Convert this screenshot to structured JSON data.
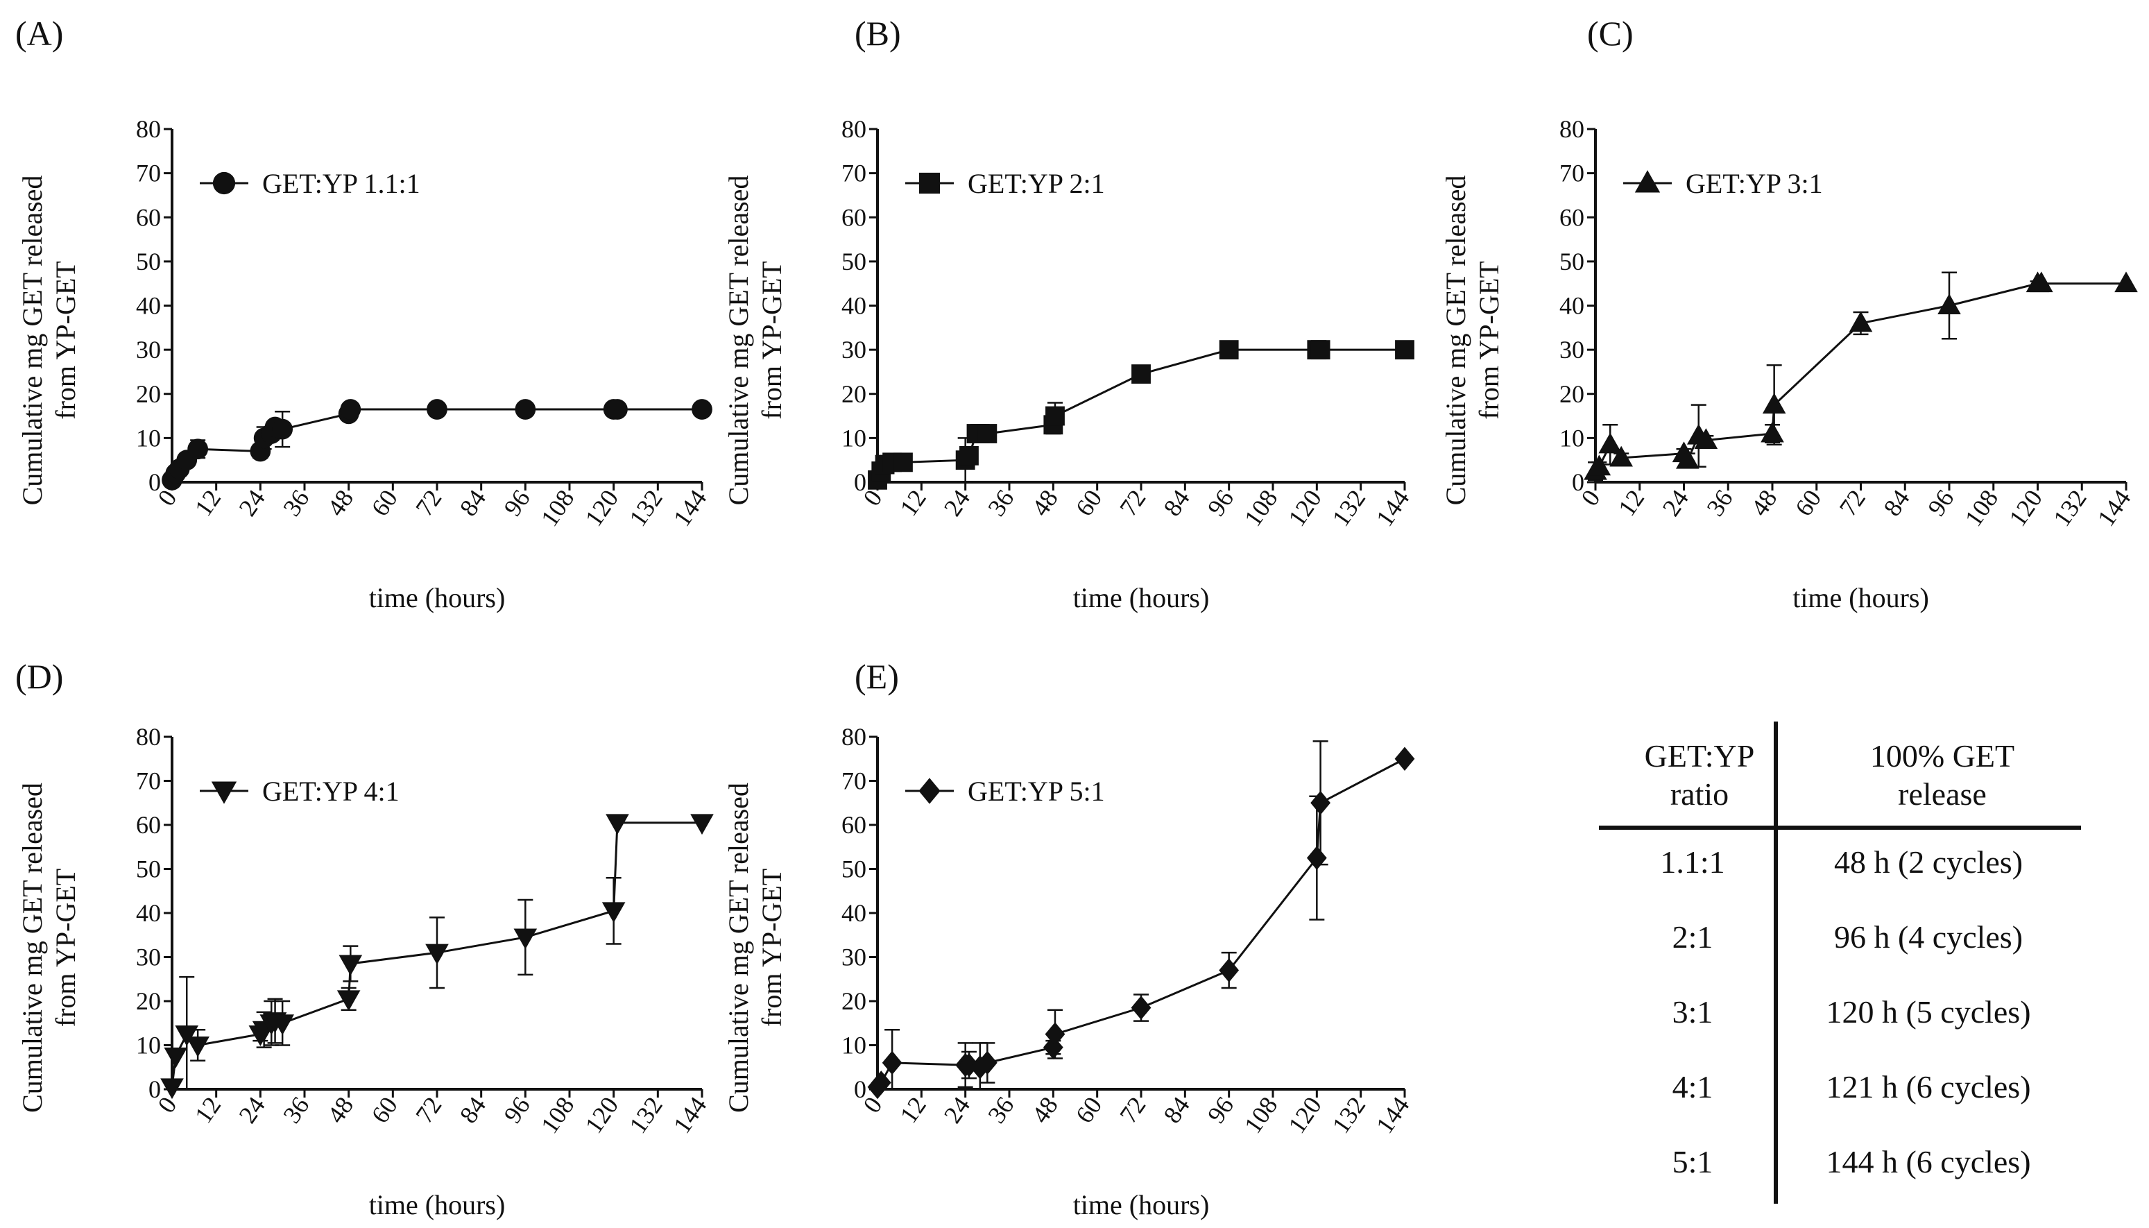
{
  "chart_data": [
    {
      "type": "line",
      "panel": "(A)",
      "legend": "GET:YP 1.1:1",
      "marker": "circle",
      "xlabel": "time (hours)",
      "ylabel_line1": "Cumulative mg  GET released",
      "ylabel_line2": "from YP-GET",
      "xlim": [
        0,
        144
      ],
      "ylim": [
        0,
        80
      ],
      "xticks": [
        0,
        12,
        24,
        36,
        48,
        60,
        72,
        84,
        96,
        108,
        120,
        132,
        144
      ],
      "yticks": [
        0,
        10,
        20,
        30,
        40,
        50,
        60,
        70,
        80
      ],
      "legend_position": "top-left",
      "series": [
        {
          "name": "GET:YP 1.1:1",
          "x": [
            0,
            1,
            2,
            4,
            7,
            24,
            25,
            27,
            28,
            30,
            48,
            48.5,
            72,
            96,
            120,
            121,
            144
          ],
          "y": [
            0.5,
            2,
            3,
            5,
            7.5,
            7,
            10,
            11,
            12.5,
            12,
            15.5,
            16.5,
            16.5,
            16.5,
            16.5,
            16.5,
            16.5
          ],
          "err": [
            0,
            0,
            0,
            0.5,
            2,
            1.5,
            2.5,
            1.5,
            1,
            4,
            1,
            0.5,
            0,
            0,
            0,
            0,
            0
          ]
        }
      ]
    },
    {
      "type": "line",
      "panel": "(B)",
      "legend": "GET:YP 2:1",
      "marker": "square",
      "xlabel": "time (hours)",
      "ylabel_line1": "Cumulative mg  GET released",
      "ylabel_line2": "from YP-GET",
      "xlim": [
        0,
        144
      ],
      "ylim": [
        0,
        80
      ],
      "xticks": [
        0,
        12,
        24,
        36,
        48,
        60,
        72,
        84,
        96,
        108,
        120,
        132,
        144
      ],
      "yticks": [
        0,
        10,
        20,
        30,
        40,
        50,
        60,
        70,
        80
      ],
      "legend_position": "top-left",
      "series": [
        {
          "name": "GET:YP 2:1",
          "x": [
            0,
            1,
            2,
            4,
            7,
            24,
            25,
            27,
            28,
            30,
            48,
            48.5,
            72,
            96,
            120,
            121,
            144
          ],
          "y": [
            0.5,
            2.5,
            4,
            4.5,
            4.5,
            5,
            6,
            11,
            11,
            11,
            13,
            15,
            24.5,
            30,
            30,
            30,
            30
          ],
          "err": [
            0,
            0,
            0.5,
            1.5,
            0.5,
            5,
            1.5,
            1,
            0,
            0,
            2,
            3,
            0.5,
            0,
            0,
            0,
            0
          ]
        }
      ]
    },
    {
      "type": "line",
      "panel": "(C)",
      "legend": "GET:YP 3:1",
      "marker": "triangle",
      "xlabel": "time (hours)",
      "ylabel_line1": "Cumulative mg  GET released",
      "ylabel_line2": "from YP-GET",
      "xlim": [
        0,
        144
      ],
      "ylim": [
        0,
        80
      ],
      "xticks": [
        0,
        12,
        24,
        36,
        48,
        60,
        72,
        84,
        96,
        108,
        120,
        132,
        144
      ],
      "yticks": [
        0,
        10,
        20,
        30,
        40,
        50,
        60,
        70,
        80
      ],
      "legend_position": "top-left",
      "series": [
        {
          "name": "GET:YP 3:1",
          "x": [
            0,
            1,
            4,
            7,
            24,
            25,
            28,
            30,
            48,
            48.5,
            72,
            96,
            120,
            121,
            144
          ],
          "y": [
            2.5,
            3.5,
            8.5,
            5.5,
            6.5,
            5,
            10.5,
            9.5,
            11,
            17.5,
            36,
            40,
            45,
            45,
            45
          ],
          "err": [
            2,
            1,
            4.5,
            1,
            1,
            1.5,
            7,
            1,
            2,
            9,
            2.5,
            7.5,
            0.5,
            0,
            0
          ]
        }
      ]
    },
    {
      "type": "line",
      "panel": "(D)",
      "legend": "GET:YP 4:1",
      "marker": "triangle-down",
      "xlabel": "time (hours)",
      "ylabel_line1": "Cumulative mg  GET released",
      "ylabel_line2": "from YP-GET",
      "xlim": [
        0,
        144
      ],
      "ylim": [
        0,
        80
      ],
      "xticks": [
        0,
        12,
        24,
        36,
        48,
        60,
        72,
        84,
        96,
        108,
        120,
        132,
        144
      ],
      "yticks": [
        0,
        10,
        20,
        30,
        40,
        50,
        60,
        70,
        80
      ],
      "legend_position": "top-left",
      "series": [
        {
          "name": "GET:YP 4:1",
          "x": [
            0,
            1,
            4,
            7,
            24,
            25,
            27,
            28,
            30,
            48,
            48.5,
            72,
            96,
            120,
            121,
            144
          ],
          "y": [
            0.5,
            7.5,
            12.5,
            10,
            12.5,
            13.5,
            15,
            15.5,
            15,
            20.5,
            28.5,
            31,
            34.5,
            40.5,
            60.5,
            60.5
          ],
          "err": [
            0,
            0,
            13,
            3.5,
            1.5,
            4,
            5,
            5,
            5,
            2.5,
            4,
            8,
            8.5,
            7.5,
            0,
            0
          ]
        }
      ]
    },
    {
      "type": "line",
      "panel": "(E)",
      "legend": "GET:YP 5:1",
      "marker": "diamond",
      "xlabel": "time (hours)",
      "ylabel_line1": "Cumulative mg  GET released",
      "ylabel_line2": "from YP-GET",
      "xlim": [
        0,
        144
      ],
      "ylim": [
        0,
        80
      ],
      "xticks": [
        0,
        12,
        24,
        36,
        48,
        60,
        72,
        84,
        96,
        108,
        120,
        132,
        144
      ],
      "yticks": [
        0,
        10,
        20,
        30,
        40,
        50,
        60,
        70,
        80
      ],
      "legend_position": "top-left",
      "series": [
        {
          "name": "GET:YP 5:1",
          "x": [
            0,
            1,
            4,
            24,
            25,
            28,
            30,
            48,
            48.5,
            72,
            96,
            120,
            121,
            144
          ],
          "y": [
            0.5,
            1.5,
            6,
            5.5,
            5.5,
            5,
            6,
            9.5,
            12.5,
            18.5,
            27,
            52.5,
            65,
            75
          ],
          "err": [
            0,
            0,
            7.5,
            5,
            3,
            5.5,
            4.5,
            1.5,
            5.5,
            3,
            4,
            14,
            14,
            0
          ]
        }
      ]
    }
  ],
  "table": {
    "header_col1_line1": "GET:YP",
    "header_col1_line2": "ratio",
    "header_col2_line1": "100% GET",
    "header_col2_line2": "release",
    "rows": [
      {
        "ratio": "1.1:1",
        "release": "48 h (2 cycles)"
      },
      {
        "ratio": "2:1",
        "release": "96 h (4 cycles)"
      },
      {
        "ratio": "3:1",
        "release": "120 h (5 cycles)"
      },
      {
        "ratio": "4:1",
        "release": "121 h (6 cycles)"
      },
      {
        "ratio": "5:1",
        "release": "144 h (6 cycles)"
      }
    ]
  }
}
